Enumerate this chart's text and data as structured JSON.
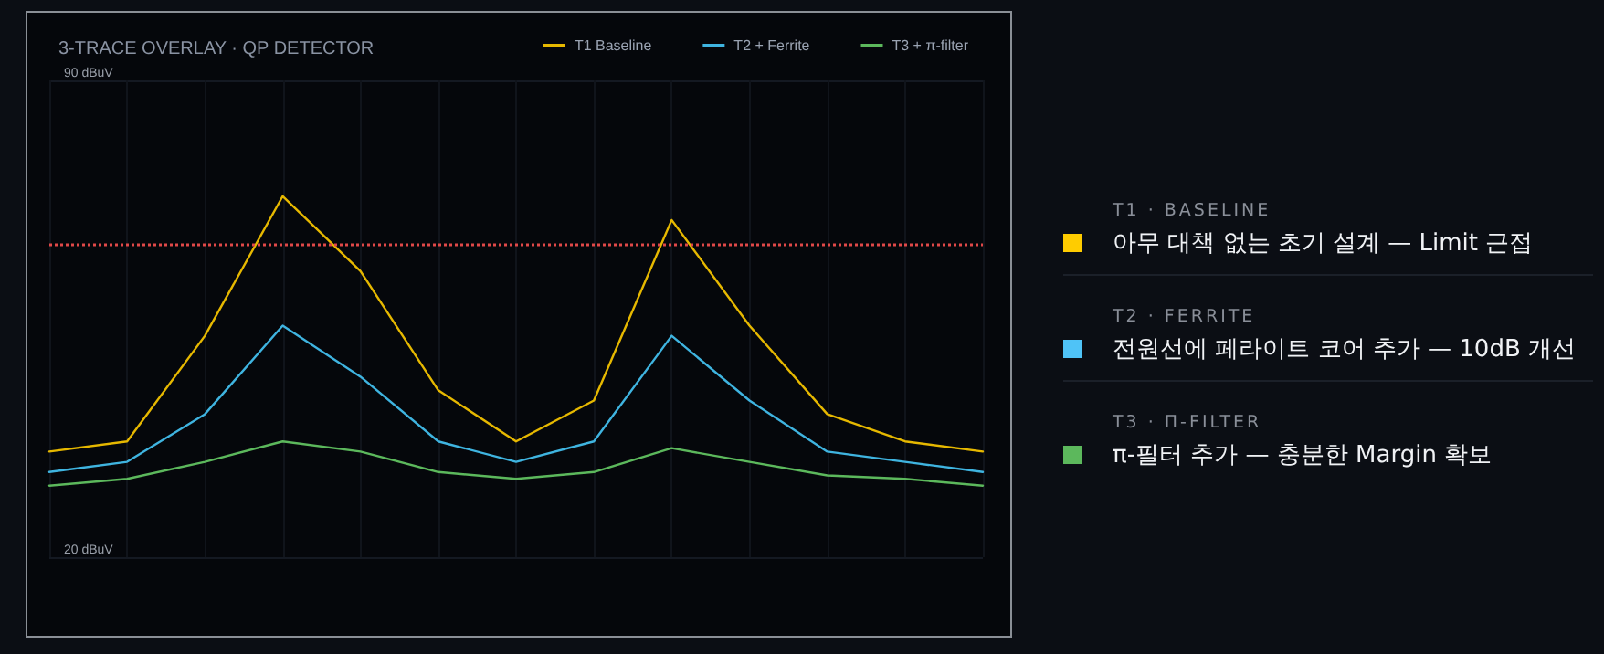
{
  "chart_data": [
    {
      "type": "line",
      "title": "3-TRACE OVERLAY · QP DETECTOR",
      "categories": [
        null,
        null,
        null,
        null,
        null,
        null,
        null,
        null,
        null,
        null,
        null,
        null,
        null
      ],
      "series": [
        {
          "name": "T1 Baseline",
          "color": "#e6b800",
          "values": [
            35.5,
            37,
            52.5,
            73,
            62,
            44.5,
            37,
            43,
            69.5,
            54,
            41,
            37,
            35.5
          ]
        },
        {
          "name": "T2 + Ferrite",
          "color": "#3fb4e0",
          "values": [
            32.5,
            34,
            41,
            54,
            46.5,
            37,
            34,
            37,
            52.5,
            43,
            35.5,
            34,
            32.5
          ]
        },
        {
          "name": "T3 + π-filter",
          "color": "#5cb85c",
          "values": [
            30.5,
            31.5,
            34,
            37,
            35.5,
            32.5,
            31.5,
            32.5,
            36,
            34,
            32,
            31.5,
            30.5
          ]
        }
      ],
      "ylim": [
        20,
        90
      ],
      "yticks": [
        {
          "value": 20,
          "label": "20 dBuV"
        },
        {
          "value": 90,
          "label": "90 dBuV"
        }
      ],
      "ref_lines": [
        {
          "axis": "y",
          "value": 66,
          "color": "#e04848",
          "line_style": "dotted"
        }
      ],
      "grid": true,
      "legend": "top right",
      "marker": "none",
      "line_style": "solid"
    },
    {
      "type": "other",
      "colors": [
        "#ffcc00",
        "#4fc3f7",
        "#5cb85c"
      ],
      "annotations": [
        "T1 · BASELINE",
        "아무 대책 없는 초기 설계 — Limit 근접",
        "T2 · FERRITE",
        "전원선에 페라이트 코어 추가 — 10dB 개선",
        "T3 · Π-FILTER",
        "π-필터 추가 — 충분한 Margin 확보"
      ]
    }
  ]
}
